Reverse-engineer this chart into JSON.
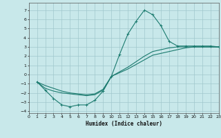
{
  "xlabel": "Humidex (Indice chaleur)",
  "bg_color": "#c8e8ea",
  "grid_color": "#a0c8cc",
  "line_color": "#1a7a6e",
  "xlim": [
    0,
    23
  ],
  "ylim": [
    -4.2,
    7.8
  ],
  "yticks": [
    -4,
    -3,
    -2,
    -1,
    0,
    1,
    2,
    3,
    4,
    5,
    6,
    7
  ],
  "xticks": [
    0,
    1,
    2,
    3,
    4,
    5,
    6,
    7,
    8,
    9,
    10,
    11,
    12,
    13,
    14,
    15,
    16,
    17,
    18,
    19,
    20,
    21,
    22,
    23
  ],
  "curve1_x": [
    1,
    2,
    3,
    4,
    5,
    6,
    7,
    8,
    9,
    10,
    11,
    12,
    13,
    14,
    15,
    16,
    17,
    18,
    19,
    20,
    21,
    22,
    23
  ],
  "curve1_y": [
    -0.8,
    -1.7,
    -2.6,
    -3.3,
    -3.5,
    -3.3,
    -3.3,
    -2.8,
    -1.8,
    -0.2,
    2.2,
    4.4,
    5.8,
    7.0,
    6.5,
    5.3,
    3.6,
    3.1,
    3.1,
    3.1,
    3.1,
    3.1,
    3.0
  ],
  "curve2_x": [
    1,
    2,
    3,
    4,
    5,
    6,
    7,
    8,
    9,
    10,
    11,
    12,
    13,
    14,
    15,
    16,
    17,
    18,
    19,
    20,
    21,
    22,
    23
  ],
  "curve2_y": [
    -0.8,
    -1.5,
    -1.8,
    -2.0,
    -2.1,
    -2.2,
    -2.3,
    -2.2,
    -1.7,
    -0.2,
    0.2,
    0.6,
    1.1,
    1.6,
    2.1,
    2.3,
    2.5,
    2.7,
    2.9,
    3.0,
    3.0,
    3.0,
    3.0
  ],
  "curve3_x": [
    1,
    2,
    3,
    4,
    5,
    6,
    7,
    8,
    9,
    10,
    11,
    12,
    13,
    14,
    15,
    16,
    17,
    18,
    19,
    20,
    21,
    22,
    23
  ],
  "curve3_y": [
    -0.8,
    -1.2,
    -1.5,
    -1.8,
    -2.0,
    -2.1,
    -2.2,
    -2.1,
    -1.6,
    -0.2,
    0.3,
    0.8,
    1.4,
    2.0,
    2.5,
    2.7,
    2.9,
    3.0,
    3.0,
    3.0,
    3.0,
    3.0,
    3.0
  ]
}
